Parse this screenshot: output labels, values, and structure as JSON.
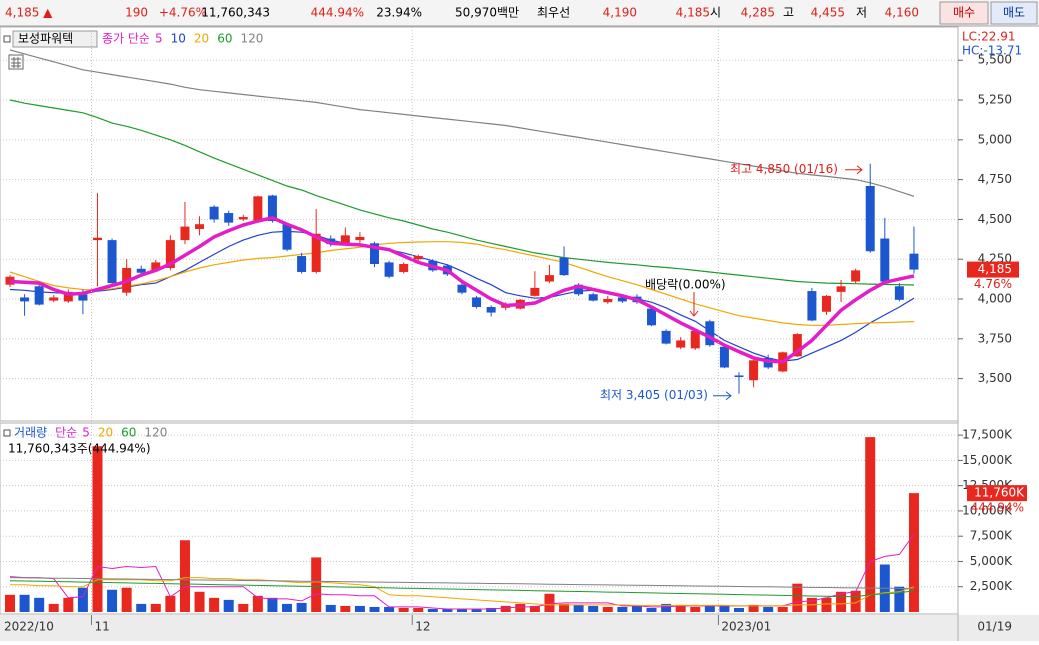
{
  "header": {
    "items": [
      {
        "text": "4,185 ▲",
        "color": "#e0201a"
      },
      {
        "text": "190",
        "color": "#e0201a"
      },
      {
        "text": "+4.76%",
        "color": "#e0201a"
      },
      {
        "text": "11,760,343",
        "color": "#000000"
      },
      {
        "text": "444.94%",
        "color": "#e0201a"
      },
      {
        "text": "23.94%",
        "color": "#000000"
      },
      {
        "text": "50,970백만",
        "color": "#000000"
      },
      {
        "text": "최우선",
        "color": "#000000"
      },
      {
        "text": "4,190",
        "color": "#e0201a"
      },
      {
        "text": "4,185",
        "color": "#e0201a"
      },
      {
        "text": "시",
        "color": "#000000"
      },
      {
        "text": "4,285",
        "color": "#e0201a"
      },
      {
        "text": "고",
        "color": "#000000"
      },
      {
        "text": "4,455",
        "color": "#e0201a"
      },
      {
        "text": "저",
        "color": "#000000"
      },
      {
        "text": "4,160",
        "color": "#e0201a"
      }
    ],
    "buy": "매수",
    "sell": "매도"
  },
  "chart_data": [
    {
      "type": "candlestick",
      "title": "보성파워텍",
      "legend_prefix": "종가 단순",
      "lc": "LC:22.91",
      "hc": "HC:-13.71",
      "price_tag": "4,185",
      "change_tag": "4.76%",
      "annotations": {
        "high": "최고 4,850 (01/16)",
        "low": "최저 3,405 (01/03)",
        "dividend": "배당락(0.00%)"
      },
      "up_color": "#e8281e",
      "down_color": "#1c57cf",
      "grid": true,
      "ylim": [
        3240,
        5690
      ],
      "yticks": [
        {
          "value": 3500,
          "label": "3,500"
        },
        {
          "value": 3750,
          "label": "3,750"
        },
        {
          "value": 4000,
          "label": "4,000"
        },
        {
          "value": 4250,
          "label": "4,250"
        },
        {
          "value": 4500,
          "label": "4,500"
        },
        {
          "value": 4750,
          "label": "4,750"
        },
        {
          "value": 5000,
          "label": "5,000"
        },
        {
          "value": 5250,
          "label": "5,250"
        },
        {
          "value": 5500,
          "label": "5,500"
        }
      ],
      "open": [
        4090,
        4010,
        4080,
        3990,
        3985,
        4030,
        4370,
        4370,
        4040,
        4190,
        4180,
        4195,
        4370,
        4440,
        4580,
        4540,
        4500,
        4490,
        4650,
        4470,
        4270,
        4170,
        4380,
        4345,
        4370,
        4350,
        4230,
        4170,
        4250,
        4240,
        4210,
        4090,
        4010,
        3950,
        3945,
        3940,
        4020,
        4110,
        4260,
        4090,
        4030,
        3980,
        4010,
        4015,
        3940,
        3800,
        3695,
        3690,
        3860,
        3700,
        3520,
        3490,
        3630,
        3545,
        3640,
        4050,
        3920,
        4045,
        4110,
        4710,
        4380,
        4080,
        4285
      ],
      "high": [
        4150,
        4030,
        4090,
        4025,
        4060,
        4060,
        4665,
        4380,
        4250,
        4210,
        4245,
        4400,
        4610,
        4520,
        4590,
        4555,
        4530,
        4650,
        4655,
        4480,
        4290,
        4565,
        4400,
        4450,
        4420,
        4360,
        4240,
        4230,
        4280,
        4250,
        4215,
        4100,
        4020,
        3960,
        3980,
        4000,
        4175,
        4215,
        4330,
        4100,
        4040,
        4020,
        4020,
        4030,
        3950,
        3810,
        3760,
        3810,
        3870,
        3710,
        3540,
        3620,
        3650,
        3670,
        3785,
        4070,
        4025,
        4120,
        4190,
        4850,
        4510,
        4100,
        4455
      ],
      "low": [
        4075,
        3895,
        3960,
        3980,
        3975,
        3905,
        4080,
        4095,
        4020,
        4150,
        4170,
        4180,
        4345,
        4400,
        4480,
        4460,
        4490,
        4480,
        4480,
        4300,
        4160,
        4160,
        4330,
        4340,
        4350,
        4200,
        4130,
        4160,
        4230,
        4170,
        4145,
        4030,
        3940,
        3890,
        3930,
        3935,
        4015,
        4100,
        4145,
        4020,
        3985,
        3970,
        3975,
        3970,
        3830,
        3715,
        3685,
        3680,
        3700,
        3565,
        3405,
        3445,
        3560,
        3540,
        3635,
        3860,
        3900,
        3980,
        4100,
        4290,
        4100,
        3985,
        4160
      ],
      "close": [
        4140,
        3985,
        3965,
        4010,
        4045,
        3990,
        4385,
        4100,
        4195,
        4165,
        4230,
        4370,
        4455,
        4470,
        4500,
        4480,
        4515,
        4645,
        4490,
        4310,
        4170,
        4410,
        4345,
        4400,
        4390,
        4220,
        4140,
        4220,
        4270,
        4180,
        4155,
        4040,
        3950,
        3915,
        3965,
        3995,
        4070,
        4150,
        4150,
        4030,
        3990,
        4000,
        3985,
        3980,
        3835,
        3720,
        3740,
        3800,
        3710,
        3570,
        3510,
        3615,
        3570,
        3665,
        3780,
        3865,
        4020,
        4080,
        4180,
        4300,
        4110,
        3995,
        4185
      ],
      "series": [
        {
          "name": "5",
          "color": "#e31ec8",
          "values": [
            4110,
            4105,
            4100,
            4060,
            4030,
            4035,
            4060,
            4085,
            4110,
            4150,
            4180,
            4220,
            4275,
            4330,
            4390,
            4430,
            4465,
            4490,
            4510,
            4470,
            4435,
            4390,
            4350,
            4345,
            4340,
            4325,
            4310,
            4270,
            4230,
            4205,
            4180,
            4110,
            4055,
            4000,
            3960,
            3965,
            3975,
            4015,
            4055,
            4080,
            4060,
            4040,
            4020,
            3995,
            3950,
            3900,
            3850,
            3805,
            3760,
            3710,
            3670,
            3630,
            3610,
            3605,
            3670,
            3740,
            3835,
            3930,
            3995,
            4055,
            4105,
            4125,
            4145
          ]
        },
        {
          "name": "10",
          "color": "#2040d0",
          "values": [
            4060,
            4055,
            4045,
            4040,
            4035,
            4030,
            4050,
            4060,
            4075,
            4090,
            4100,
            4140,
            4180,
            4230,
            4280,
            4330,
            4370,
            4400,
            4420,
            4425,
            4420,
            4400,
            4370,
            4350,
            4340,
            4330,
            4310,
            4290,
            4265,
            4240,
            4215,
            4175,
            4130,
            4090,
            4040,
            4020,
            4005,
            4010,
            4030,
            4050,
            4055,
            4040,
            4020,
            4000,
            3980,
            3945,
            3900,
            3860,
            3800,
            3740,
            3700,
            3660,
            3630,
            3610,
            3620,
            3660,
            3700,
            3740,
            3790,
            3850,
            3900,
            3950,
            4005
          ]
        },
        {
          "name": "20",
          "color": "#f0a800",
          "values": [
            4170,
            4140,
            4110,
            4085,
            4070,
            4060,
            4055,
            4065,
            4080,
            4095,
            4115,
            4140,
            4170,
            4195,
            4215,
            4230,
            4245,
            4255,
            4260,
            4270,
            4280,
            4290,
            4305,
            4315,
            4325,
            4340,
            4350,
            4355,
            4358,
            4360,
            4360,
            4355,
            4345,
            4325,
            4310,
            4290,
            4270,
            4250,
            4230,
            4200,
            4170,
            4140,
            4115,
            4090,
            4060,
            4030,
            4000,
            3970,
            3945,
            3920,
            3895,
            3880,
            3865,
            3850,
            3840,
            3835,
            3835,
            3840,
            3845,
            3850,
            3852,
            3855,
            3858
          ]
        },
        {
          "name": "60",
          "color": "#1e9a2e",
          "values": [
            5250,
            5230,
            5215,
            5200,
            5185,
            5170,
            5140,
            5105,
            5085,
            5060,
            5030,
            5000,
            4965,
            4925,
            4885,
            4850,
            4815,
            4780,
            4745,
            4710,
            4685,
            4650,
            4620,
            4590,
            4560,
            4535,
            4510,
            4490,
            4465,
            4440,
            4420,
            4395,
            4370,
            4350,
            4330,
            4310,
            4290,
            4275,
            4260,
            4250,
            4240,
            4230,
            4222,
            4215,
            4205,
            4198,
            4190,
            4180,
            4170,
            4160,
            4150,
            4140,
            4130,
            4120,
            4110,
            4105,
            4100,
            4098,
            4096,
            4094,
            4092,
            4090,
            4088
          ]
        },
        {
          "name": "120",
          "color": "#808080",
          "values": [
            5565,
            5540,
            5515,
            5490,
            5465,
            5440,
            5425,
            5410,
            5395,
            5380,
            5365,
            5350,
            5330,
            5315,
            5305,
            5295,
            5285,
            5275,
            5265,
            5255,
            5245,
            5235,
            5220,
            5205,
            5190,
            5180,
            5170,
            5160,
            5150,
            5140,
            5130,
            5120,
            5110,
            5100,
            5090,
            5075,
            5060,
            5045,
            5030,
            5015,
            5000,
            4985,
            4970,
            4955,
            4940,
            4925,
            4910,
            4895,
            4880,
            4865,
            4850,
            4835,
            4820,
            4805,
            4790,
            4780,
            4770,
            4760,
            4750,
            4730,
            4705,
            4675,
            4645
          ]
        }
      ]
    },
    {
      "type": "volume",
      "title": "거래량",
      "legend_prefix": "단순",
      "subtitle": "11,760,343주(444.94%)",
      "volume_tag": "11,760K",
      "ratio_tag": "444.94%",
      "last_date": "01/19",
      "up_color": "#e8281e",
      "down_color": "#1c57cf",
      "grid": true,
      "categories": [
        "2022/10",
        null,
        null,
        null,
        null,
        null,
        "11",
        null,
        null,
        null,
        null,
        null,
        null,
        null,
        null,
        null,
        null,
        null,
        null,
        null,
        null,
        null,
        null,
        null,
        null,
        null,
        null,
        null,
        "12",
        null,
        null,
        null,
        null,
        null,
        null,
        null,
        null,
        null,
        null,
        null,
        null,
        null,
        null,
        null,
        null,
        null,
        null,
        null,
        null,
        "2023/01",
        null,
        null,
        null,
        null,
        null,
        null,
        null,
        null,
        null,
        null,
        null,
        null,
        null
      ],
      "ylim": [
        0,
        18500
      ],
      "yticks": [
        {
          "value": 2500,
          "label": "2,500K"
        },
        {
          "value": 5000,
          "label": "5,000K"
        },
        {
          "value": 7500,
          "label": "7,500K"
        },
        {
          "value": 10000,
          "label": "10,000K"
        },
        {
          "value": 12500,
          "label": "12,500K"
        },
        {
          "value": 15000,
          "label": "15,000K"
        },
        {
          "value": 17500,
          "label": "17,500K"
        }
      ],
      "values": [
        1700,
        1700,
        1400,
        800,
        1400,
        2400,
        16400,
        2200,
        2400,
        800,
        800,
        1600,
        7100,
        2000,
        1400,
        1200,
        800,
        1600,
        1400,
        800,
        900,
        5400,
        700,
        600,
        600,
        500,
        500,
        400,
        400,
        300,
        300,
        300,
        300,
        400,
        600,
        800,
        600,
        1800,
        800,
        700,
        600,
        500,
        500,
        600,
        400,
        800,
        700,
        500,
        600,
        700,
        400,
        700,
        500,
        500,
        2800,
        1400,
        1400,
        2000,
        2100,
        17300,
        4700,
        2500,
        11760
      ],
      "series": [
        {
          "name": "5",
          "color": "#e31ec8",
          "values": [
            3500,
            3400,
            3400,
            3300,
            1400,
            1500,
            4500,
            4300,
            4500,
            4400,
            4500,
            1500,
            2500,
            2500,
            2500,
            2500,
            2500,
            1400,
            1300,
            1300,
            1100,
            1800,
            1700,
            1700,
            1600,
            1600,
            500,
            500,
            500,
            400,
            300,
            300,
            300,
            300,
            400,
            500,
            500,
            800,
            900,
            900,
            900,
            900,
            600,
            600,
            500,
            500,
            600,
            600,
            600,
            600,
            600,
            600,
            600,
            600,
            1000,
            1100,
            1400,
            1800,
            2000,
            5000,
            5500,
            5700,
            7700
          ]
        },
        {
          "name": "20",
          "color": "#f0a800",
          "values": [
            2700,
            2700,
            2600,
            2600,
            2500,
            2500,
            3200,
            3200,
            3200,
            3200,
            3100,
            3100,
            3400,
            3400,
            3300,
            3300,
            3200,
            3200,
            3100,
            3000,
            2900,
            3000,
            2900,
            2800,
            2700,
            2500,
            1700,
            1600,
            1600,
            1500,
            1400,
            1300,
            1200,
            1100,
            1000,
            900,
            800,
            700,
            700,
            700,
            700,
            700,
            700,
            650,
            650,
            650,
            650,
            650,
            650,
            650,
            600,
            600,
            600,
            600,
            700,
            700,
            800,
            800,
            900,
            1700,
            1900,
            2000,
            2500
          ]
        },
        {
          "name": "60",
          "color": "#1e9a2e",
          "values": [
            3100,
            3070,
            3045,
            3015,
            2990,
            2960,
            2935,
            2905,
            2880,
            2850,
            2825,
            2795,
            2770,
            2740,
            2715,
            2685,
            2660,
            2630,
            2605,
            2575,
            2550,
            2520,
            2495,
            2465,
            2440,
            2410,
            2385,
            2355,
            2330,
            2300,
            2275,
            2245,
            2220,
            2190,
            2165,
            2135,
            2110,
            2080,
            2055,
            2025,
            2000,
            1970,
            1945,
            1915,
            1890,
            1860,
            1835,
            1805,
            1780,
            1750,
            1725,
            1695,
            1670,
            1640,
            1615,
            1585,
            1560,
            1530,
            1500,
            1700,
            1800,
            1900,
            2100
          ]
        },
        {
          "name": "120",
          "color": "#808080",
          "values": [
            3400,
            3380,
            3365,
            3345,
            3330,
            3310,
            3295,
            3275,
            3260,
            3240,
            3225,
            3205,
            3190,
            3170,
            3155,
            3135,
            3120,
            3100,
            3085,
            3065,
            3050,
            3030,
            3015,
            2995,
            2980,
            2960,
            2945,
            2925,
            2910,
            2890,
            2875,
            2855,
            2840,
            2820,
            2805,
            2785,
            2770,
            2750,
            2735,
            2715,
            2700,
            2680,
            2665,
            2645,
            2630,
            2610,
            2595,
            2575,
            2560,
            2540,
            2525,
            2505,
            2490,
            2470,
            2455,
            2435,
            2420,
            2400,
            2385,
            2365,
            2350,
            2330,
            2300
          ]
        }
      ]
    }
  ]
}
